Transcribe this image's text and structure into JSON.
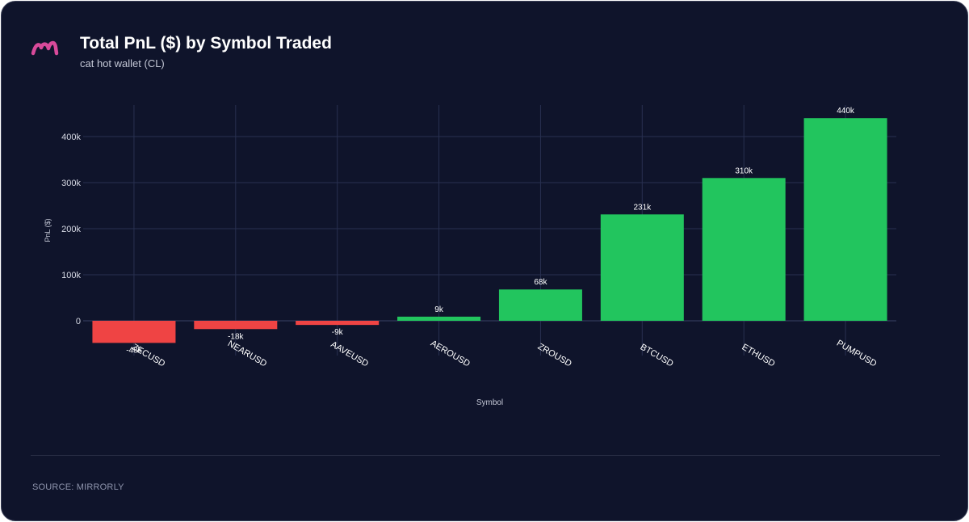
{
  "header": {
    "title": "Total PnL ($) by Symbol Traded",
    "subtitle": "cat hot wallet (CL)",
    "logo_icon": "mirrorly-logo-icon"
  },
  "footer": {
    "source": "SOURCE: MIRRORLY"
  },
  "colors": {
    "background": "#0f142b",
    "positive": "#22c55e",
    "negative": "#ef4444",
    "logo": "#d84a9a"
  },
  "chart_data": {
    "type": "bar",
    "title": "Total PnL ($) by Symbol Traded",
    "xlabel": "Symbol",
    "ylabel": "PnL ($)",
    "categories": [
      "ZECUSD",
      "NEARUSD",
      "AAVEUSD",
      "AEROUSD",
      "ZROUSD",
      "BTCUSD",
      "ETHUSD",
      "PUMPUSD"
    ],
    "values": [
      -48000,
      -18000,
      -9000,
      9000,
      68000,
      231000,
      310000,
      440000
    ],
    "data_labels": [
      "-48k",
      "-18k",
      "-9k",
      "9k",
      "68k",
      "231k",
      "310k",
      "440k"
    ],
    "yticks": [
      0,
      100000,
      200000,
      300000,
      400000
    ],
    "ytick_labels": [
      "0",
      "100k",
      "200k",
      "300k",
      "400k"
    ],
    "ylim": [
      -55000,
      470000
    ],
    "grid": true,
    "legend": "none"
  }
}
